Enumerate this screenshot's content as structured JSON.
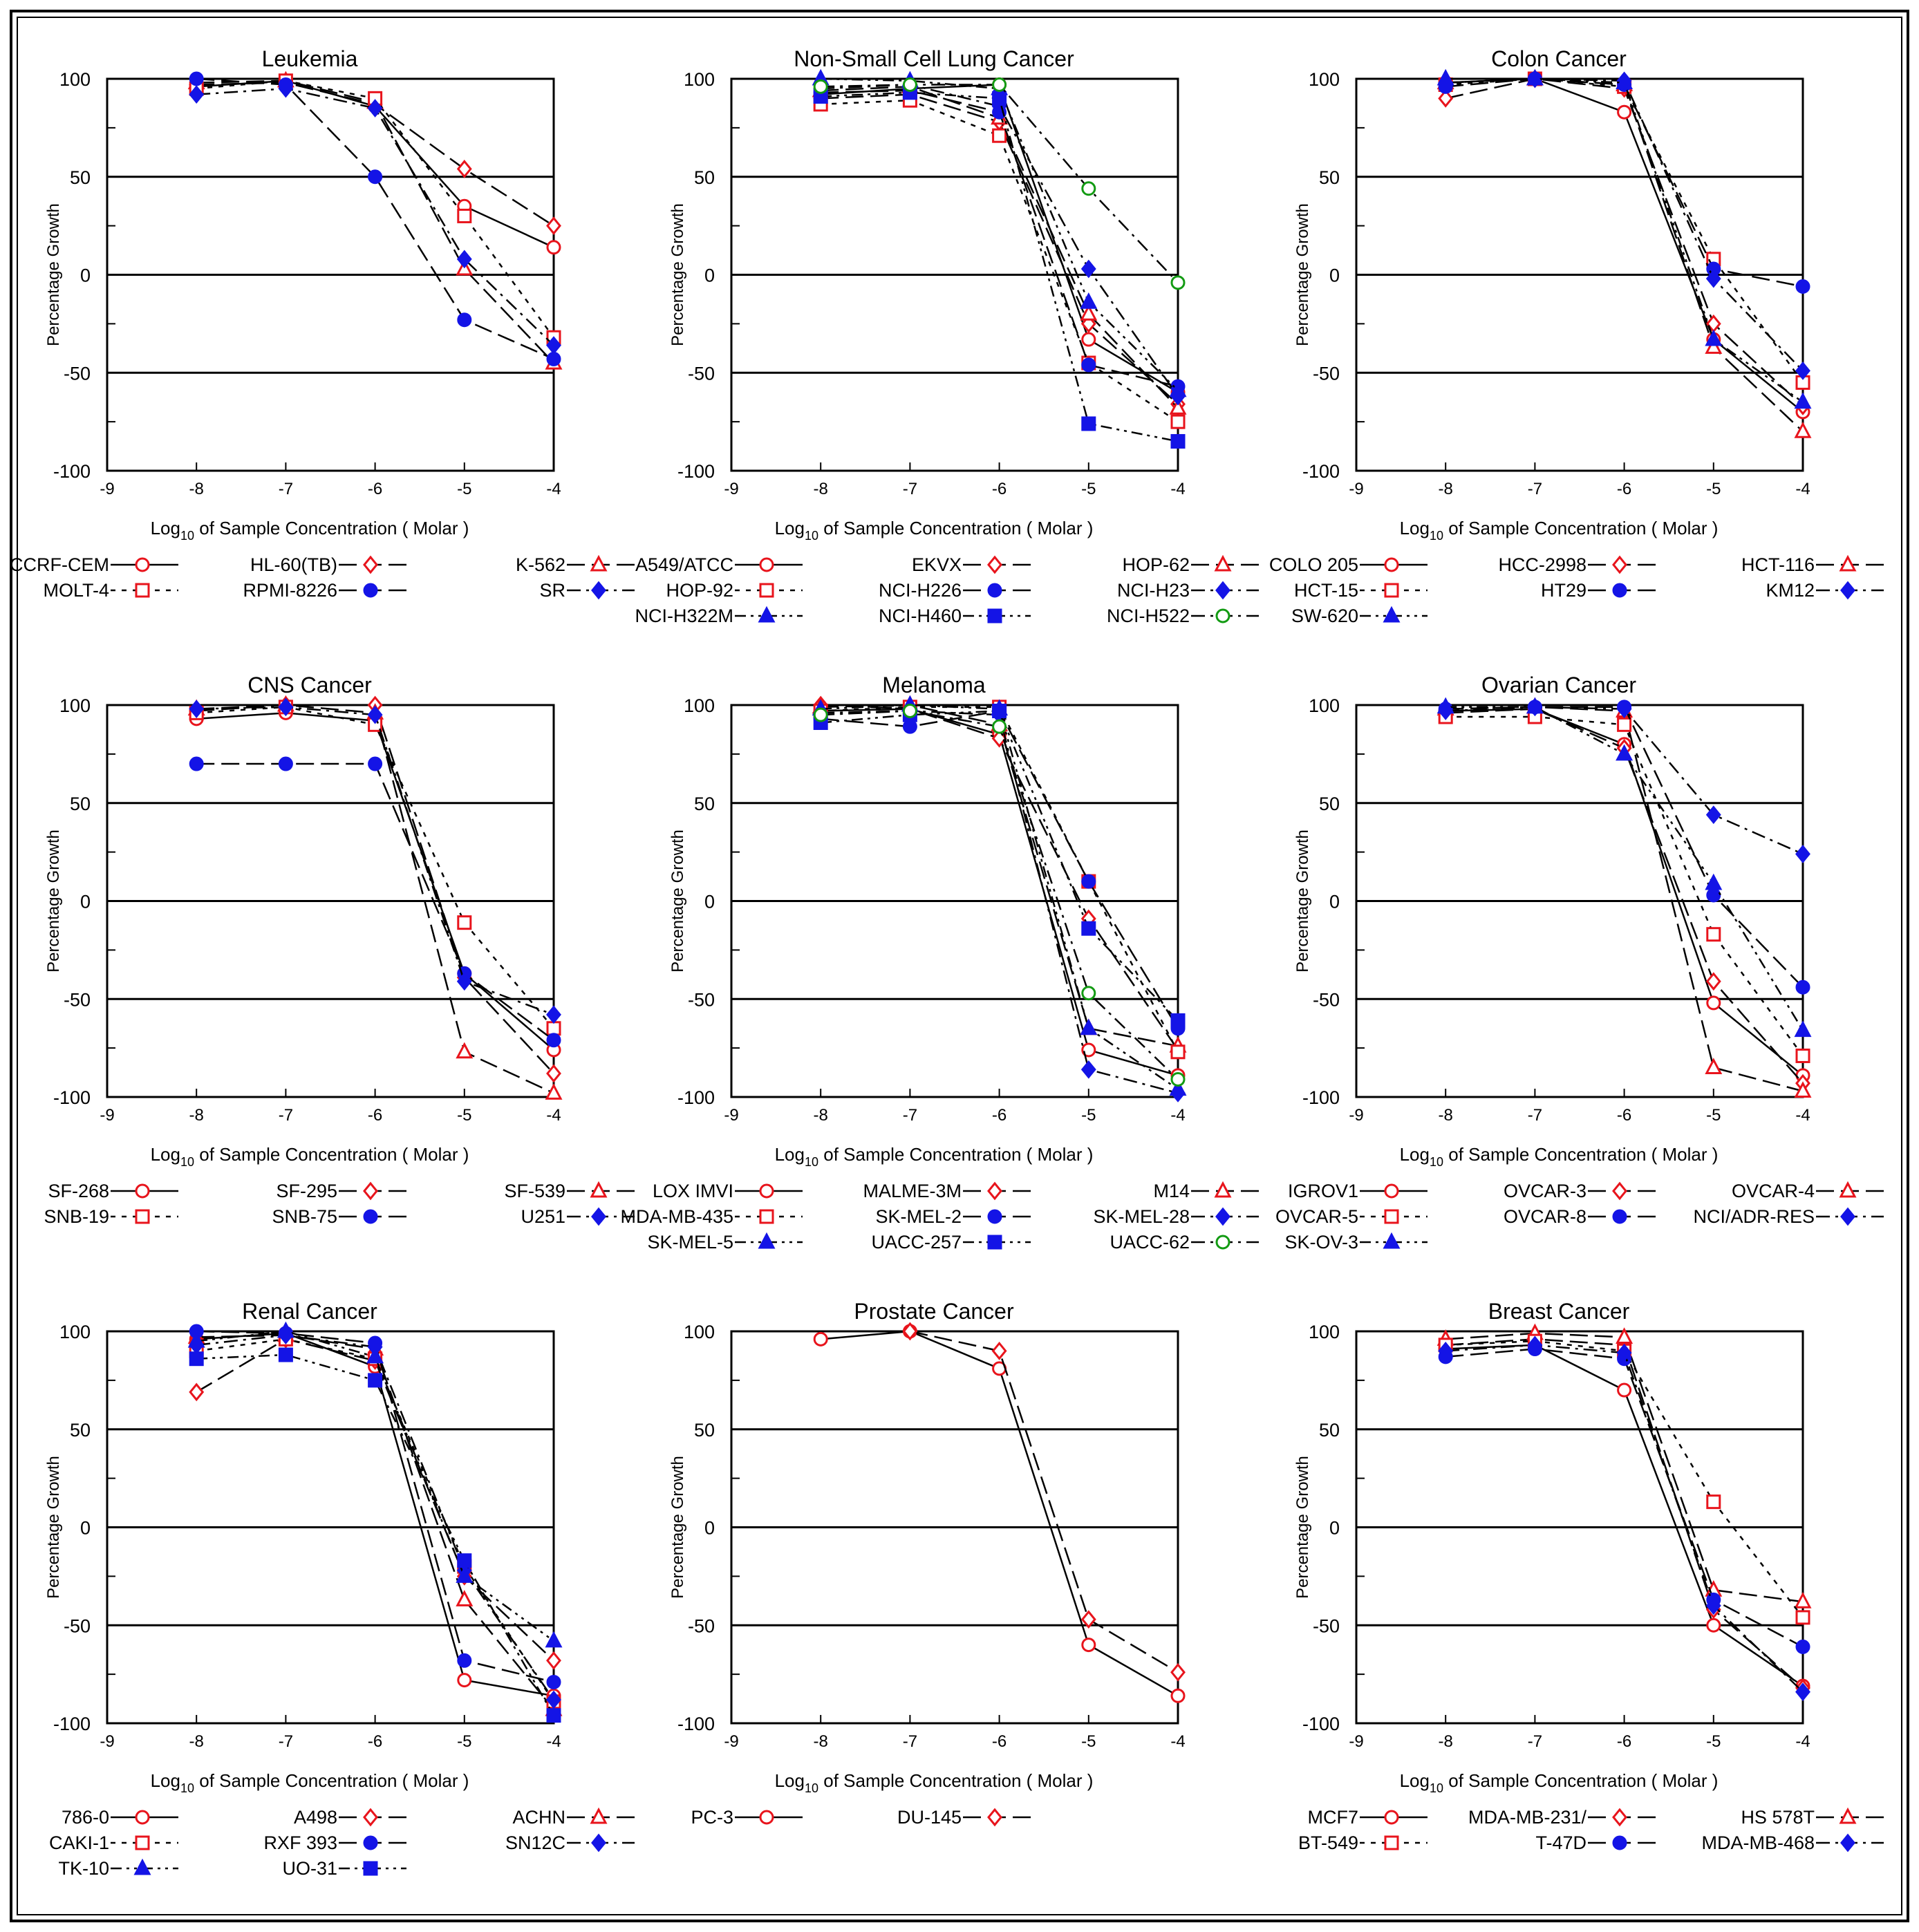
{
  "figure": {
    "axis_common": {
      "xlabel_pre": "Log",
      "xlabel_sub": "10",
      "xlabel_post": " of Sample Concentration ( Molar )",
      "ylabel": "Percentage Growth",
      "xticks": [
        -9,
        -8,
        -7,
        -6,
        -5,
        -4
      ],
      "yticks": [
        100,
        50,
        0,
        -50,
        -100
      ],
      "xlim": [
        -9,
        -4
      ],
      "ylim": [
        -100,
        100
      ],
      "horizontal_reference_lines": [
        50,
        0,
        -50
      ]
    }
  },
  "chart_data": [
    {
      "type": "line",
      "title": "Leukemia",
      "xlabel": "Log10 of Sample Concentration ( Molar )",
      "ylabel": "Percentage Growth",
      "x": [
        -8,
        -7,
        -6,
        -5,
        -4
      ],
      "series": [
        {
          "name": "CCRF-CEM",
          "values": [
            96,
            99,
            86,
            35,
            14
          ],
          "color": "#e8141c",
          "marker": "circle-open",
          "dash": "solid"
        },
        {
          "name": "HL-60(TB)",
          "values": [
            97,
            98,
            87,
            54,
            25
          ],
          "color": "#e8141c",
          "marker": "diamond-open",
          "dash": "dash"
        },
        {
          "name": "K-562",
          "values": [
            98,
            99,
            88,
            3,
            -45
          ],
          "color": "#e8141c",
          "marker": "triangle-open",
          "dash": "dash"
        },
        {
          "name": "MOLT-4",
          "values": [
            95,
            99,
            90,
            30,
            -32
          ],
          "color": "#e8141c",
          "marker": "square-open",
          "dash": "dot"
        },
        {
          "name": "RPMI-8226",
          "values": [
            100,
            97,
            50,
            -23,
            -43
          ],
          "color": "#1414e6",
          "marker": "circle-filled",
          "dash": "dash"
        },
        {
          "name": "SR",
          "values": [
            92,
            95,
            85,
            8,
            -36
          ],
          "color": "#1414e6",
          "marker": "diamond-filled",
          "dash": "dashdot"
        }
      ]
    },
    {
      "type": "line",
      "title": "Non-Small Cell Lung Cancer",
      "xlabel": "Log10 of Sample Concentration ( Molar )",
      "ylabel": "Percentage Growth",
      "x": [
        -8,
        -7,
        -6,
        -5,
        -4
      ],
      "series": [
        {
          "name": "A549/ATCC",
          "values": [
            92,
            95,
            97,
            -33,
            -60
          ],
          "color": "#e8141c",
          "marker": "circle-open",
          "dash": "solid"
        },
        {
          "name": "EKVX",
          "values": [
            90,
            92,
            78,
            -25,
            -66
          ],
          "color": "#e8141c",
          "marker": "diamond-open",
          "dash": "dash"
        },
        {
          "name": "HOP-62",
          "values": [
            94,
            96,
            80,
            -20,
            -68
          ],
          "color": "#e8141c",
          "marker": "triangle-open",
          "dash": "dash"
        },
        {
          "name": "HOP-92",
          "values": [
            87,
            89,
            71,
            -45,
            -75
          ],
          "color": "#e8141c",
          "marker": "square-open",
          "dash": "dot"
        },
        {
          "name": "NCI-H226",
          "values": [
            93,
            94,
            83,
            -46,
            -57
          ],
          "color": "#1414e6",
          "marker": "circle-filled",
          "dash": "dash"
        },
        {
          "name": "NCI-H23",
          "values": [
            95,
            97,
            86,
            3,
            -62
          ],
          "color": "#1414e6",
          "marker": "diamond-filled",
          "dash": "dashdot"
        },
        {
          "name": "NCI-H322M",
          "values": [
            100,
            99,
            95,
            -14,
            -59
          ],
          "color": "#1414e6",
          "marker": "triangle-filled",
          "dash": "dashdotdot"
        },
        {
          "name": "NCI-H460",
          "values": [
            91,
            93,
            90,
            -76,
            -85
          ],
          "color": "#1414e6",
          "marker": "square-filled",
          "dash": "dashdotdot"
        },
        {
          "name": "NCI-H522",
          "values": [
            96,
            97,
            97,
            44,
            -4
          ],
          "color": "#139b13",
          "marker": "circle-open",
          "dash": "dashdot"
        }
      ]
    },
    {
      "type": "line",
      "title": "Colon Cancer",
      "xlabel": "Log10 of Sample Concentration ( Molar )",
      "ylabel": "Percentage Growth",
      "x": [
        -8,
        -7,
        -6,
        -5,
        -4
      ],
      "series": [
        {
          "name": "COLO 205",
          "values": [
            98,
            100,
            83,
            -33,
            -70
          ],
          "color": "#e8141c",
          "marker": "circle-open",
          "dash": "solid"
        },
        {
          "name": "HCC-2998",
          "values": [
            90,
            100,
            95,
            -25,
            -67
          ],
          "color": "#e8141c",
          "marker": "diamond-open",
          "dash": "dash"
        },
        {
          "name": "HCT-116",
          "values": [
            98,
            100,
            97,
            -37,
            -80
          ],
          "color": "#e8141c",
          "marker": "triangle-open",
          "dash": "dash"
        },
        {
          "name": "HCT-15",
          "values": [
            97,
            100,
            96,
            8,
            -55
          ],
          "color": "#e8141c",
          "marker": "square-open",
          "dash": "dot"
        },
        {
          "name": "HT29",
          "values": [
            96,
            100,
            97,
            3,
            -6
          ],
          "color": "#1414e6",
          "marker": "circle-filled",
          "dash": "dash"
        },
        {
          "name": "KM12",
          "values": [
            98,
            100,
            99,
            -2,
            -49
          ],
          "color": "#1414e6",
          "marker": "diamond-filled",
          "dash": "dashdot"
        },
        {
          "name": "SW-620",
          "values": [
            100,
            100,
            98,
            -33,
            -65
          ],
          "color": "#1414e6",
          "marker": "triangle-filled",
          "dash": "dashdotdot"
        }
      ]
    },
    {
      "type": "line",
      "title": "CNS Cancer",
      "xlabel": "Log10 of Sample Concentration ( Molar )",
      "ylabel": "Percentage Growth",
      "x": [
        -8,
        -7,
        -6,
        -5,
        -4
      ],
      "series": [
        {
          "name": "SF-268",
          "values": [
            93,
            96,
            92,
            -37,
            -76
          ],
          "color": "#e8141c",
          "marker": "circle-open",
          "dash": "solid"
        },
        {
          "name": "SF-295",
          "values": [
            97,
            100,
            100,
            -39,
            -88
          ],
          "color": "#e8141c",
          "marker": "diamond-open",
          "dash": "dash"
        },
        {
          "name": "SF-539",
          "values": [
            98,
            100,
            96,
            -77,
            -98
          ],
          "color": "#e8141c",
          "marker": "triangle-open",
          "dash": "dash"
        },
        {
          "name": "SNB-19",
          "values": [
            96,
            99,
            90,
            -11,
            -65
          ],
          "color": "#e8141c",
          "marker": "square-open",
          "dash": "dot"
        },
        {
          "name": "SNB-75",
          "values": [
            70,
            70,
            70,
            -37,
            -71
          ],
          "color": "#1414e6",
          "marker": "circle-filled",
          "dash": "dash"
        },
        {
          "name": "U251",
          "values": [
            98,
            99,
            95,
            -41,
            -58
          ],
          "color": "#1414e6",
          "marker": "diamond-filled",
          "dash": "dashdot"
        }
      ]
    },
    {
      "type": "line",
      "title": "Melanoma",
      "xlabel": "Log10 of Sample Concentration ( Molar )",
      "ylabel": "Percentage Growth",
      "x": [
        -8,
        -7,
        -6,
        -5,
        -4
      ],
      "series": [
        {
          "name": "LOX IMVI",
          "values": [
            97,
            98,
            85,
            -76,
            -89
          ],
          "color": "#e8141c",
          "marker": "circle-open",
          "dash": "solid"
        },
        {
          "name": "MALME-3M",
          "values": [
            100,
            98,
            83,
            -9,
            -76
          ],
          "color": "#e8141c",
          "marker": "diamond-open",
          "dash": "dash"
        },
        {
          "name": "M14",
          "values": [
            99,
            100,
            90,
            -65,
            -74
          ],
          "color": "#e8141c",
          "marker": "triangle-open",
          "dash": "dash"
        },
        {
          "name": "MDA-MB-435",
          "values": [
            97,
            99,
            99,
            10,
            -77
          ],
          "color": "#e8141c",
          "marker": "square-open",
          "dash": "dot"
        },
        {
          "name": "SK-MEL-2",
          "values": [
            93,
            89,
            97,
            10,
            -65
          ],
          "color": "#1414e6",
          "marker": "circle-filled",
          "dash": "dash"
        },
        {
          "name": "SK-MEL-28",
          "values": [
            96,
            97,
            95,
            -86,
            -98
          ],
          "color": "#1414e6",
          "marker": "diamond-filled",
          "dash": "dashdot"
        },
        {
          "name": "SK-MEL-5",
          "values": [
            98,
            100,
            98,
            -65,
            -96
          ],
          "color": "#1414e6",
          "marker": "triangle-filled",
          "dash": "dashdotdot"
        },
        {
          "name": "UACC-257",
          "values": [
            91,
            95,
            97,
            -14,
            -61
          ],
          "color": "#1414e6",
          "marker": "square-filled",
          "dash": "dashdotdot"
        },
        {
          "name": "UACC-62",
          "values": [
            95,
            97,
            89,
            -47,
            -91
          ],
          "color": "#139b13",
          "marker": "circle-open",
          "dash": "dashdot"
        }
      ]
    },
    {
      "type": "line",
      "title": "Ovarian Cancer",
      "xlabel": "Log10 of Sample Concentration ( Molar )",
      "ylabel": "Percentage Growth",
      "x": [
        -8,
        -7,
        -6,
        -5,
        -4
      ],
      "series": [
        {
          "name": "IGROV1",
          "values": [
            97,
            98,
            80,
            -52,
            -89
          ],
          "color": "#e8141c",
          "marker": "circle-open",
          "dash": "solid"
        },
        {
          "name": "OVCAR-3",
          "values": [
            96,
            98,
            78,
            -41,
            -93
          ],
          "color": "#e8141c",
          "marker": "diamond-open",
          "dash": "dash"
        },
        {
          "name": "OVCAR-4",
          "values": [
            98,
            99,
            97,
            -85,
            -97
          ],
          "color": "#e8141c",
          "marker": "triangle-open",
          "dash": "dash"
        },
        {
          "name": "OVCAR-5",
          "values": [
            94,
            94,
            90,
            -17,
            -79
          ],
          "color": "#e8141c",
          "marker": "square-open",
          "dash": "dot"
        },
        {
          "name": "OVCAR-8",
          "values": [
            98,
            99,
            99,
            3,
            -44
          ],
          "color": "#1414e6",
          "marker": "circle-filled",
          "dash": "dash"
        },
        {
          "name": "NCI/ADR-RES",
          "values": [
            97,
            99,
            98,
            44,
            24
          ],
          "color": "#1414e6",
          "marker": "diamond-filled",
          "dash": "dashdot"
        },
        {
          "name": "SK-OV-3",
          "values": [
            99,
            99,
            75,
            9,
            -66
          ],
          "color": "#1414e6",
          "marker": "triangle-filled",
          "dash": "dashdotdot"
        }
      ]
    },
    {
      "type": "line",
      "title": "Renal Cancer",
      "xlabel": "Log10 of Sample Concentration ( Molar )",
      "ylabel": "Percentage Growth",
      "x": [
        -8,
        -7,
        -6,
        -5,
        -4
      ],
      "series": [
        {
          "name": "786-0",
          "values": [
            96,
            99,
            82,
            -78,
            -86
          ],
          "color": "#e8141c",
          "marker": "circle-open",
          "dash": "solid"
        },
        {
          "name": "A498",
          "values": [
            69,
            96,
            85,
            -25,
            -68
          ],
          "color": "#e8141c",
          "marker": "diamond-open",
          "dash": "dash"
        },
        {
          "name": "ACHN",
          "values": [
            97,
            98,
            91,
            -37,
            -93
          ],
          "color": "#e8141c",
          "marker": "triangle-open",
          "dash": "dash"
        },
        {
          "name": "CAKI-1",
          "values": [
            90,
            96,
            86,
            -20,
            -89
          ],
          "color": "#e8141c",
          "marker": "square-open",
          "dash": "dot"
        },
        {
          "name": "RXF 393",
          "values": [
            100,
            99,
            94,
            -68,
            -79
          ],
          "color": "#1414e6",
          "marker": "circle-filled",
          "dash": "dash"
        },
        {
          "name": "SN12C",
          "values": [
            93,
            98,
            92,
            -22,
            -88
          ],
          "color": "#1414e6",
          "marker": "diamond-filled",
          "dash": "dashdot"
        },
        {
          "name": "TK-10",
          "values": [
            95,
            100,
            87,
            -25,
            -58
          ],
          "color": "#1414e6",
          "marker": "triangle-filled",
          "dash": "dashdotdot"
        },
        {
          "name": "UO-31",
          "values": [
            86,
            88,
            75,
            -17,
            -96
          ],
          "color": "#1414e6",
          "marker": "square-filled",
          "dash": "dashdotdot"
        }
      ]
    },
    {
      "type": "line",
      "title": "Prostate Cancer",
      "xlabel": "Log10 of Sample Concentration ( Molar )",
      "ylabel": "Percentage Growth",
      "x": [
        -8,
        -7,
        -6,
        -5,
        -4
      ],
      "series": [
        {
          "name": "PC-3",
          "values": [
            96,
            100,
            81,
            -60,
            -86
          ],
          "color": "#e8141c",
          "marker": "circle-open",
          "dash": "solid"
        },
        {
          "name": "DU-145",
          "values": [
            null,
            100,
            90,
            -47,
            -74
          ],
          "color": "#e8141c",
          "marker": "diamond-open",
          "dash": "dash"
        }
      ]
    },
    {
      "type": "line",
      "title": "Breast Cancer",
      "xlabel": "Log10 of Sample Concentration ( Molar )",
      "ylabel": "Percentage Growth",
      "x": [
        -8,
        -7,
        -6,
        -5,
        -4
      ],
      "series": [
        {
          "name": "MCF7",
          "values": [
            91,
            93,
            70,
            -50,
            -81
          ],
          "color": "#e8141c",
          "marker": "circle-open",
          "dash": "solid"
        },
        {
          "name": "MDA-MB-231/",
          "values": [
            93,
            96,
            93,
            -42,
            -82
          ],
          "color": "#e8141c",
          "marker": "diamond-open",
          "dash": "dash"
        },
        {
          "name": "HS 578T",
          "values": [
            96,
            99,
            97,
            -32,
            -38
          ],
          "color": "#e8141c",
          "marker": "triangle-open",
          "dash": "dash"
        },
        {
          "name": "BT-549",
          "values": [
            93,
            95,
            90,
            13,
            -46
          ],
          "color": "#e8141c",
          "marker": "square-open",
          "dash": "dot"
        },
        {
          "name": "T-47D",
          "values": [
            87,
            91,
            86,
            -37,
            -61
          ],
          "color": "#1414e6",
          "marker": "circle-filled",
          "dash": "dash"
        },
        {
          "name": "MDA-MB-468",
          "values": [
            90,
            93,
            89,
            -40,
            -84
          ],
          "color": "#1414e6",
          "marker": "diamond-filled",
          "dash": "dashdot"
        }
      ]
    }
  ]
}
